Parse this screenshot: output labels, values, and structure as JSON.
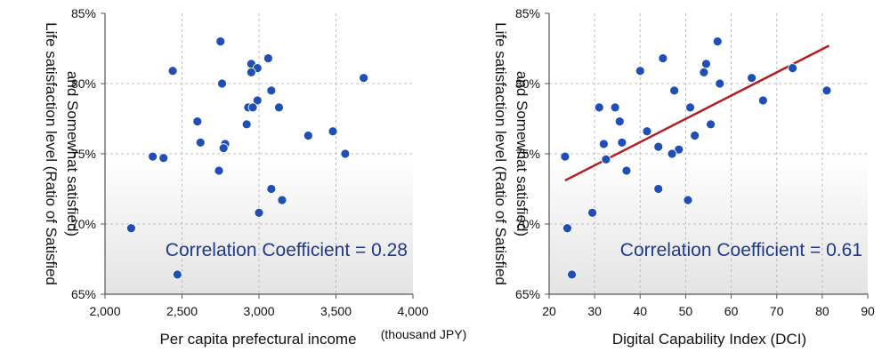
{
  "chart_data": [
    {
      "type": "scatter",
      "xlabel": "Per capita prefectural income",
      "x_unit": "(thousand JPY)",
      "ylabel_line1": "Life satisfaction level (Ratio of Satisfied",
      "ylabel_line2": "and Somewhat satisfied)",
      "xlim": [
        2000,
        4000
      ],
      "ylim": [
        65,
        85
      ],
      "x_ticks": [
        "2,000",
        "2,500",
        "3,000",
        "3,500",
        "4,000"
      ],
      "y_ticks": [
        "65%",
        "70%",
        "75%",
        "80%",
        "85%"
      ],
      "annotation": "Correlation Coefficient = 0.28",
      "grid": true,
      "marker_color": "#1f4fb5",
      "points": [
        {
          "x": 2750,
          "y": 83.0
        },
        {
          "x": 2440,
          "y": 80.9
        },
        {
          "x": 2760,
          "y": 80.0
        },
        {
          "x": 2950,
          "y": 81.4
        },
        {
          "x": 3060,
          "y": 81.8
        },
        {
          "x": 2990,
          "y": 81.1
        },
        {
          "x": 2950,
          "y": 80.8
        },
        {
          "x": 3680,
          "y": 80.4
        },
        {
          "x": 3080,
          "y": 79.5
        },
        {
          "x": 2990,
          "y": 78.8
        },
        {
          "x": 2930,
          "y": 78.3
        },
        {
          "x": 2960,
          "y": 78.3
        },
        {
          "x": 3130,
          "y": 78.3
        },
        {
          "x": 2600,
          "y": 77.3
        },
        {
          "x": 2920,
          "y": 77.1
        },
        {
          "x": 3480,
          "y": 76.6
        },
        {
          "x": 3320,
          "y": 76.3
        },
        {
          "x": 2620,
          "y": 75.8
        },
        {
          "x": 2780,
          "y": 75.7
        },
        {
          "x": 2770,
          "y": 75.4
        },
        {
          "x": 3560,
          "y": 75.0
        },
        {
          "x": 2310,
          "y": 74.8
        },
        {
          "x": 2380,
          "y": 74.7
        },
        {
          "x": 2740,
          "y": 73.8
        },
        {
          "x": 3080,
          "y": 72.5
        },
        {
          "x": 3150,
          "y": 71.7
        },
        {
          "x": 3000,
          "y": 70.8
        },
        {
          "x": 2170,
          "y": 69.7
        },
        {
          "x": 2470,
          "y": 66.4
        }
      ]
    },
    {
      "type": "scatter",
      "xlabel": "Digital Capability Index (DCI)",
      "ylabel_line1": "Life satisfaction level (Ratio of Satisfied",
      "ylabel_line2": "and Somewhat satisfied)",
      "xlim": [
        20,
        90
      ],
      "ylim": [
        65,
        85
      ],
      "x_ticks": [
        "20",
        "30",
        "40",
        "50",
        "60",
        "70",
        "80",
        "90"
      ],
      "y_ticks": [
        "65%",
        "70%",
        "75%",
        "80%",
        "85%"
      ],
      "annotation": "Correlation Coefficient = 0.61",
      "grid": true,
      "marker_color": "#1f4fb5",
      "trendline": {
        "x": [
          23.5,
          81.5
        ],
        "y": [
          73.1,
          82.7
        ],
        "color": "#b02020"
      },
      "points": [
        {
          "x": 57,
          "y": 83.0
        },
        {
          "x": 54.5,
          "y": 81.4
        },
        {
          "x": 45,
          "y": 81.8
        },
        {
          "x": 40,
          "y": 80.9
        },
        {
          "x": 54,
          "y": 80.8
        },
        {
          "x": 73.5,
          "y": 81.1
        },
        {
          "x": 64.5,
          "y": 80.4
        },
        {
          "x": 57.5,
          "y": 80.0
        },
        {
          "x": 47.5,
          "y": 79.5
        },
        {
          "x": 81,
          "y": 79.5
        },
        {
          "x": 67,
          "y": 78.8
        },
        {
          "x": 31,
          "y": 78.3
        },
        {
          "x": 34.5,
          "y": 78.3
        },
        {
          "x": 51,
          "y": 78.3
        },
        {
          "x": 35.5,
          "y": 77.3
        },
        {
          "x": 55.5,
          "y": 77.1
        },
        {
          "x": 41.5,
          "y": 76.6
        },
        {
          "x": 52,
          "y": 76.3
        },
        {
          "x": 32,
          "y": 75.7
        },
        {
          "x": 36,
          "y": 75.8
        },
        {
          "x": 44,
          "y": 75.5
        },
        {
          "x": 48.5,
          "y": 75.3
        },
        {
          "x": 47,
          "y": 75.0
        },
        {
          "x": 23.5,
          "y": 74.8
        },
        {
          "x": 32.5,
          "y": 74.6
        },
        {
          "x": 37,
          "y": 73.8
        },
        {
          "x": 44,
          "y": 72.5
        },
        {
          "x": 50.5,
          "y": 71.7
        },
        {
          "x": 29.5,
          "y": 70.8
        },
        {
          "x": 24,
          "y": 69.7
        },
        {
          "x": 25,
          "y": 66.4
        }
      ]
    }
  ]
}
